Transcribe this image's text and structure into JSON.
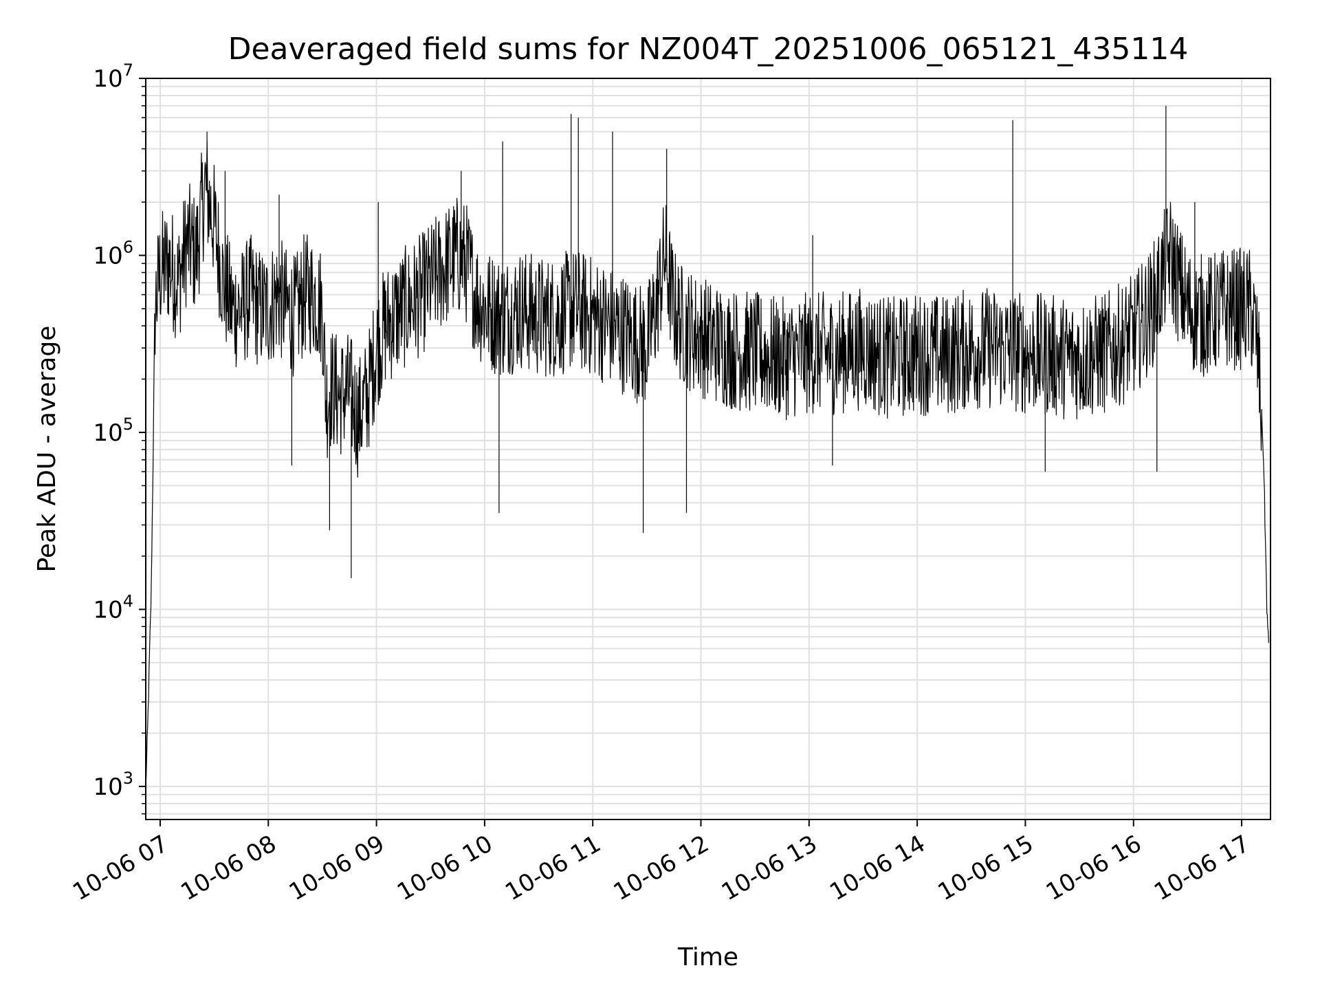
{
  "chart_data": {
    "type": "line",
    "title": "Deaveraged field sums for NZ004T_20251006_065121_435114",
    "xlabel": "Time",
    "ylabel": "Peak ADU - average",
    "yscale": "log",
    "ylim": [
      650,
      10000000
    ],
    "xlim": [
      "10-06 06:52",
      "10-06 17:16"
    ],
    "x_ticks": [
      {
        "t": "10-06 07:00",
        "label": "10-06 07"
      },
      {
        "t": "10-06 08:00",
        "label": "10-06 08"
      },
      {
        "t": "10-06 09:00",
        "label": "10-06 09"
      },
      {
        "t": "10-06 10:00",
        "label": "10-06 10"
      },
      {
        "t": "10-06 11:00",
        "label": "10-06 11"
      },
      {
        "t": "10-06 12:00",
        "label": "10-06 12"
      },
      {
        "t": "10-06 13:00",
        "label": "10-06 13"
      },
      {
        "t": "10-06 14:00",
        "label": "10-06 14"
      },
      {
        "t": "10-06 15:00",
        "label": "10-06 15"
      },
      {
        "t": "10-06 16:00",
        "label": "10-06 16"
      },
      {
        "t": "10-06 17:00",
        "label": "10-06 17"
      }
    ],
    "y_ticks": [
      {
        "value": 1000,
        "base": "10",
        "exp": "3"
      },
      {
        "value": 10000,
        "base": "10",
        "exp": "4"
      },
      {
        "value": 100000,
        "base": "10",
        "exp": "5"
      },
      {
        "value": 1000000,
        "base": "10",
        "exp": "6"
      },
      {
        "value": 10000000,
        "base": "10",
        "exp": "7"
      }
    ],
    "grid": true,
    "line_color": "#000000",
    "grid_color": "#e0e0e0",
    "series": [
      {
        "points": [
          [
            "10-06 06:52",
            1000
          ],
          [
            "10-06 06:53",
            2000
          ],
          [
            "10-06 06:54",
            5000
          ],
          [
            "10-06 06:55",
            12000
          ],
          [
            "10-06 06:56",
            60000
          ],
          [
            "10-06 06:57",
            500000
          ],
          [
            "10-06 07:00",
            800000
          ],
          [
            "10-06 07:05",
            900000
          ],
          [
            "10-06 07:10",
            700000
          ],
          [
            "10-06 07:15",
            1200000
          ],
          [
            "10-06 07:20",
            1000000
          ],
          [
            "10-06 07:25",
            2500000
          ],
          [
            "10-06 07:30",
            1500000
          ],
          [
            "10-06 07:35",
            700000
          ],
          [
            "10-06 07:40",
            500000
          ],
          [
            "10-06 07:45",
            500000
          ],
          [
            "10-06 07:50",
            600000
          ],
          [
            "10-06 07:55",
            500000
          ],
          [
            "10-06 08:00",
            500000
          ],
          [
            "10-06 08:05",
            600000
          ],
          [
            "10-06 08:10",
            500000
          ],
          [
            "10-06 08:15",
            450000
          ],
          [
            "10-06 08:20",
            600000
          ],
          [
            "10-06 08:25",
            600000
          ],
          [
            "10-06 08:30",
            500000
          ],
          [
            "10-06 08:32",
            150000
          ],
          [
            "10-06 08:35",
            180000
          ],
          [
            "10-06 08:40",
            160000
          ],
          [
            "10-06 08:45",
            170000
          ],
          [
            "10-06 08:50",
            120000
          ],
          [
            "10-06 08:55",
            160000
          ],
          [
            "10-06 09:00",
            300000
          ],
          [
            "10-06 09:05",
            400000
          ],
          [
            "10-06 09:10",
            450000
          ],
          [
            "10-06 09:15",
            500000
          ],
          [
            "10-06 09:20",
            550000
          ],
          [
            "10-06 09:25",
            600000
          ],
          [
            "10-06 09:30",
            700000
          ],
          [
            "10-06 09:35",
            800000
          ],
          [
            "10-06 09:40",
            900000
          ],
          [
            "10-06 09:45",
            1000000
          ],
          [
            "10-06 09:50",
            900000
          ],
          [
            "10-06 09:55",
            600000
          ],
          [
            "10-06 10:00",
            500000
          ],
          [
            "10-06 10:10",
            450000
          ],
          [
            "10-06 10:20",
            500000
          ],
          [
            "10-06 10:30",
            450000
          ],
          [
            "10-06 10:40",
            450000
          ],
          [
            "10-06 10:50",
            500000
          ],
          [
            "10-06 11:00",
            450000
          ],
          [
            "10-06 11:10",
            400000
          ],
          [
            "10-06 11:20",
            350000
          ],
          [
            "10-06 11:30",
            300000
          ],
          [
            "10-06 11:35",
            500000
          ],
          [
            "10-06 11:40",
            1000000
          ],
          [
            "10-06 11:45",
            500000
          ],
          [
            "10-06 11:50",
            400000
          ],
          [
            "10-06 12:00",
            350000
          ],
          [
            "10-06 12:15",
            300000
          ],
          [
            "10-06 12:30",
            280000
          ],
          [
            "10-06 12:45",
            260000
          ],
          [
            "10-06 13:00",
            280000
          ],
          [
            "10-06 13:15",
            280000
          ],
          [
            "10-06 13:30",
            300000
          ],
          [
            "10-06 13:45",
            260000
          ],
          [
            "10-06 14:00",
            280000
          ],
          [
            "10-06 14:15",
            270000
          ],
          [
            "10-06 14:30",
            300000
          ],
          [
            "10-06 14:45",
            300000
          ],
          [
            "10-06 15:00",
            280000
          ],
          [
            "10-06 15:15",
            270000
          ],
          [
            "10-06 15:30",
            260000
          ],
          [
            "10-06 15:45",
            280000
          ],
          [
            "10-06 16:00",
            350000
          ],
          [
            "10-06 16:10",
            500000
          ],
          [
            "10-06 16:15",
            700000
          ],
          [
            "10-06 16:20",
            1000000
          ],
          [
            "10-06 16:25",
            700000
          ],
          [
            "10-06 16:30",
            500000
          ],
          [
            "10-06 16:40",
            450000
          ],
          [
            "10-06 16:50",
            500000
          ],
          [
            "10-06 17:00",
            500000
          ],
          [
            "10-06 17:05",
            500000
          ],
          [
            "10-06 17:08",
            350000
          ],
          [
            "10-06 17:10",
            200000
          ],
          [
            "10-06 17:12",
            80000
          ],
          [
            "10-06 17:13",
            30000
          ],
          [
            "10-06 17:14",
            10000
          ],
          [
            "10-06 17:15",
            6000
          ]
        ],
        "spikes": [
          [
            "10-06 07:26",
            5000000
          ],
          [
            "10-06 07:36",
            3000000
          ],
          [
            "10-06 08:06",
            2200000
          ],
          [
            "10-06 08:13",
            65000
          ],
          [
            "10-06 08:34",
            28000
          ],
          [
            "10-06 08:46",
            15000
          ],
          [
            "10-06 09:01",
            2000000
          ],
          [
            "10-06 09:47",
            3000000
          ],
          [
            "10-06 10:08",
            35000
          ],
          [
            "10-06 10:10",
            4400000
          ],
          [
            "10-06 10:48",
            6300000
          ],
          [
            "10-06 10:52",
            6000000
          ],
          [
            "10-06 11:11",
            5000000
          ],
          [
            "10-06 11:28",
            27000
          ],
          [
            "10-06 11:41",
            4000000
          ],
          [
            "10-06 11:52",
            35000
          ],
          [
            "10-06 13:02",
            1300000
          ],
          [
            "10-06 13:13",
            65000
          ],
          [
            "10-06 14:53",
            5800000
          ],
          [
            "10-06 15:11",
            60000
          ],
          [
            "10-06 16:13",
            60000
          ],
          [
            "10-06 16:18",
            7000000
          ],
          [
            "10-06 16:34",
            2000000
          ]
        ]
      }
    ]
  }
}
